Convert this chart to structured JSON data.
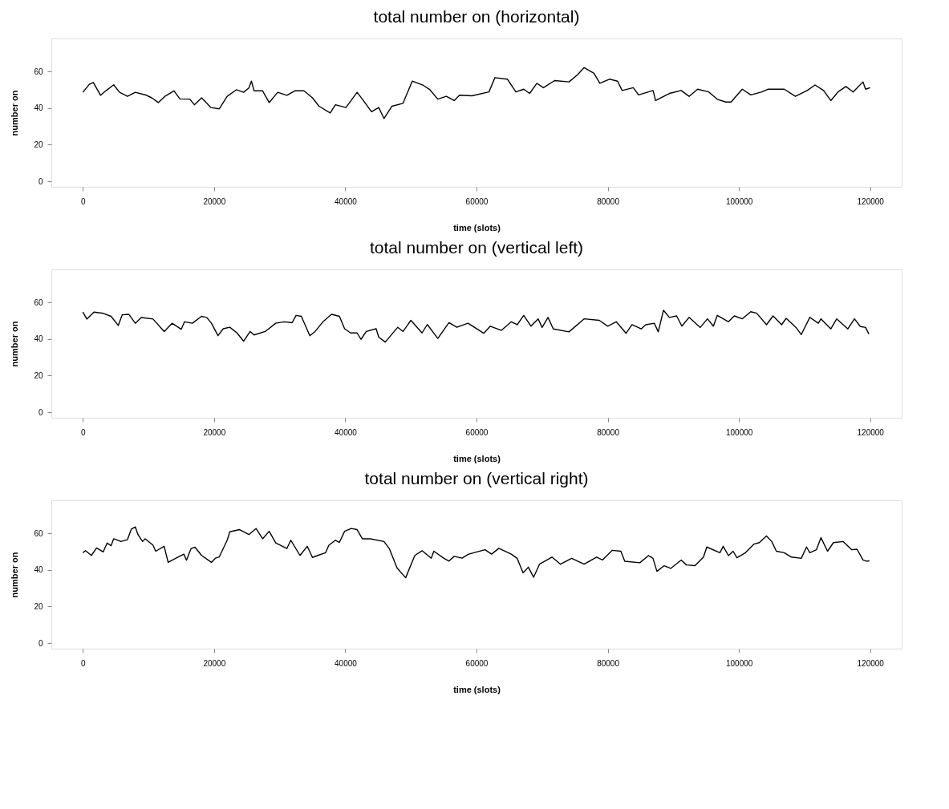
{
  "chart_data": [
    {
      "type": "line",
      "title": "total number on (horizontal)",
      "xlabel": "time (slots)",
      "ylabel": "number on",
      "color": "#000000",
      "xlim": [
        -4800,
        124800
      ],
      "ylim": [
        -3,
        78
      ],
      "xticks": [
        0,
        20000,
        40000,
        60000,
        80000,
        100000,
        120000
      ],
      "yticks": [
        0,
        20,
        40,
        60
      ],
      "grid": false,
      "x": [
        0,
        1000,
        1600,
        2700,
        3500,
        4700,
        5600,
        6800,
        8000,
        9700,
        10500,
        11500,
        12500,
        13900,
        14800,
        16300,
        17000,
        18100,
        19500,
        20800,
        22000,
        23400,
        24500,
        25300,
        25700,
        26100,
        27400,
        28400,
        29700,
        31100,
        32300,
        33700,
        35000,
        36000,
        37700,
        38500,
        40100,
        41800,
        42600,
        44000,
        45100,
        45900,
        47100,
        48800,
        50200,
        51900,
        52900,
        54100,
        55400,
        56600,
        57400,
        59300,
        61900,
        62800,
        64700,
        66000,
        67200,
        68100,
        69200,
        70200,
        71900,
        74100,
        75400,
        76400,
        77900,
        78800,
        80300,
        81500,
        82200,
        83900,
        84700,
        86900,
        87300,
        89400,
        91200,
        92400,
        93700,
        95400,
        96700,
        98000,
        98800,
        100500,
        101800,
        103500,
        104400,
        106900,
        108600,
        110400,
        111600,
        112900,
        114000,
        115100,
        116300,
        117400,
        118900,
        119300,
        120000
      ],
      "values": [
        48.6,
        53,
        54,
        47,
        49.4,
        52.7,
        48.6,
        46.4,
        48.6,
        47,
        45.6,
        43,
        46.4,
        49.4,
        45,
        44.9,
        41.8,
        45.6,
        40.3,
        39.6,
        46.4,
        50,
        48.6,
        51,
        54.7,
        49.4,
        49.4,
        43,
        48.6,
        47,
        49.4,
        49.4,
        45.6,
        41,
        37.3,
        41.8,
        40.3,
        48.6,
        44.9,
        38,
        40.3,
        34.3,
        41,
        42.6,
        54.7,
        52.4,
        50,
        44.9,
        46.4,
        44.1,
        47,
        46.7,
        48.8,
        56.6,
        55.8,
        48.8,
        50.3,
        48,
        53.5,
        51.1,
        55,
        54.3,
        58.2,
        62.1,
        59,
        53.5,
        55.8,
        54.7,
        49.6,
        51.1,
        47.2,
        49.6,
        44.1,
        48,
        49.6,
        46.4,
        50.3,
        48.8,
        44.8,
        43.3,
        43.3,
        50.3,
        47.2,
        48.8,
        50.3,
        50.3,
        46.4,
        49.6,
        52.6,
        49.6,
        44.1,
        48.8,
        51.8,
        48.8,
        54.3,
        50.3,
        51.1
      ]
    },
    {
      "type": "line",
      "title": "total number on (vertical left)",
      "xlabel": "time (slots)",
      "ylabel": "number on",
      "color": "#000000",
      "xlim": [
        -4800,
        124800
      ],
      "ylim": [
        -3,
        78
      ],
      "xticks": [
        0,
        20000,
        40000,
        60000,
        80000,
        100000,
        120000
      ],
      "yticks": [
        0,
        20,
        40,
        60
      ],
      "grid": false,
      "x": [
        0,
        600,
        1700,
        3100,
        4300,
        5400,
        6000,
        7000,
        8000,
        8900,
        10700,
        12400,
        13600,
        15000,
        15500,
        16700,
        18100,
        18900,
        19600,
        20600,
        21400,
        22400,
        23500,
        24500,
        25500,
        26100,
        27800,
        29400,
        30700,
        31900,
        32500,
        33300,
        34600,
        35400,
        36600,
        37900,
        39100,
        39900,
        40800,
        41800,
        42400,
        43200,
        44700,
        45100,
        46100,
        48000,
        48800,
        50000,
        51700,
        52500,
        54100,
        55800,
        57000,
        58700,
        61100,
        62100,
        63800,
        65300,
        66200,
        67200,
        68300,
        69400,
        70000,
        70900,
        71700,
        74100,
        76400,
        78700,
        80000,
        81300,
        82800,
        83700,
        85100,
        85800,
        87100,
        87700,
        88500,
        89400,
        90500,
        91300,
        92400,
        94100,
        95200,
        96100,
        96700,
        98400,
        99300,
        100500,
        101800,
        102700,
        104200,
        105200,
        106500,
        107200,
        108700,
        109500,
        110800,
        112100,
        112500,
        114000,
        114900,
        116600,
        117600,
        118500,
        119300,
        119800
      ],
      "values": [
        54.7,
        50.9,
        54.7,
        54,
        52.4,
        47.4,
        53.2,
        53.5,
        48.6,
        51.7,
        50.9,
        44.1,
        48.6,
        45.3,
        49.4,
        48.6,
        52.4,
        51.7,
        48.6,
        41.8,
        45.6,
        46.4,
        43.3,
        38.8,
        44.1,
        42.2,
        44.1,
        48.6,
        49.4,
        48.9,
        52.9,
        52.4,
        41.8,
        44.1,
        49.4,
        53.5,
        52.4,
        45.6,
        43.3,
        43.3,
        39.8,
        44.1,
        45.6,
        41,
        38.3,
        46.4,
        44.1,
        50.2,
        43.3,
        47.9,
        40.3,
        48.9,
        46.4,
        48.6,
        43.1,
        47,
        44.7,
        49.4,
        47.8,
        52.9,
        47,
        51,
        46.3,
        51.8,
        45.5,
        43.9,
        51,
        50.2,
        47,
        49.4,
        43.1,
        47.8,
        45.5,
        47.8,
        48.6,
        43.9,
        55.7,
        51.8,
        52.6,
        47,
        51.8,
        46.3,
        51,
        47,
        52.9,
        49.4,
        52.6,
        51,
        54.9,
        54.1,
        47.8,
        52.6,
        47.8,
        51.3,
        46.3,
        42.4,
        51.8,
        48.6,
        51,
        45.5,
        51,
        45.5,
        51,
        46.8,
        46.3,
        42.7
      ]
    },
    {
      "type": "line",
      "title": "total number on (vertical right)",
      "xlabel": "time (slots)",
      "ylabel": "number on",
      "color": "#000000",
      "xlim": [
        -4800,
        124800
      ],
      "ylim": [
        -3,
        78
      ],
      "xticks": [
        0,
        20000,
        40000,
        60000,
        80000,
        100000,
        120000
      ],
      "yticks": [
        0,
        20,
        40,
        60
      ],
      "grid": false,
      "x": [
        0,
        400,
        1300,
        2100,
        3100,
        3700,
        4300,
        4700,
        5800,
        6800,
        7400,
        8000,
        8400,
        9100,
        9500,
        10700,
        11100,
        12400,
        13000,
        14200,
        15400,
        15800,
        16500,
        17100,
        18100,
        19600,
        20200,
        20800,
        22000,
        22400,
        23900,
        25300,
        26400,
        27400,
        28400,
        29400,
        31100,
        31700,
        33100,
        34200,
        35000,
        35800,
        37000,
        37500,
        38500,
        39100,
        39900,
        40900,
        41800,
        42600,
        43800,
        45900,
        46700,
        47900,
        49200,
        50600,
        51700,
        53100,
        53500,
        55000,
        55800,
        56600,
        57800,
        58800,
        61300,
        62300,
        63400,
        65300,
        66200,
        67100,
        67900,
        68700,
        69600,
        71500,
        72800,
        74500,
        76400,
        78300,
        79200,
        80700,
        82000,
        82600,
        84900,
        86200,
        86900,
        87500,
        88600,
        89600,
        91200,
        92000,
        93300,
        94600,
        95100,
        97100,
        97600,
        98400,
        99100,
        99700,
        101000,
        102300,
        103100,
        104200,
        105000,
        105700,
        106900,
        108000,
        109500,
        110300,
        110800,
        111800,
        112500,
        113500,
        114400,
        115900,
        117200,
        118000,
        118900,
        119500,
        119900
      ],
      "values": [
        49.4,
        50.5,
        47.9,
        52,
        49.8,
        54.7,
        53.2,
        57,
        55.5,
        56.5,
        62.3,
        63.5,
        59.3,
        55.5,
        57,
        53.5,
        50.2,
        52.9,
        44.1,
        46.4,
        48.6,
        45.3,
        51.7,
        52.4,
        47.9,
        44.1,
        46.4,
        47.1,
        56.2,
        60.8,
        62,
        59.3,
        62.6,
        57,
        61.1,
        54.7,
        51.7,
        56.2,
        47.9,
        52.9,
        46.8,
        47.9,
        49.4,
        53.5,
        56.2,
        55,
        61.1,
        62.6,
        62,
        57,
        57,
        55.5,
        51.7,
        41,
        35.7,
        47.9,
        50.5,
        46.4,
        50.2,
        46.4,
        44.8,
        47.4,
        46.4,
        48.6,
        51,
        48.6,
        51.8,
        48.6,
        46.3,
        38.4,
        41.5,
        36,
        43.1,
        47,
        43.1,
        46.3,
        43.1,
        47,
        45.4,
        50.7,
        50.2,
        44.7,
        43.9,
        47.8,
        46.3,
        39.2,
        42.3,
        40.8,
        45.4,
        42.7,
        42.3,
        47,
        52.5,
        49.4,
        52.9,
        47.8,
        50.2,
        46.6,
        49.4,
        54.1,
        54.9,
        58.5,
        55.5,
        50.2,
        49.4,
        47,
        46.3,
        52.5,
        49.4,
        51,
        57.6,
        50.2,
        54.9,
        55.5,
        51,
        51.3,
        45.4,
        44.7,
        45
      ]
    }
  ]
}
